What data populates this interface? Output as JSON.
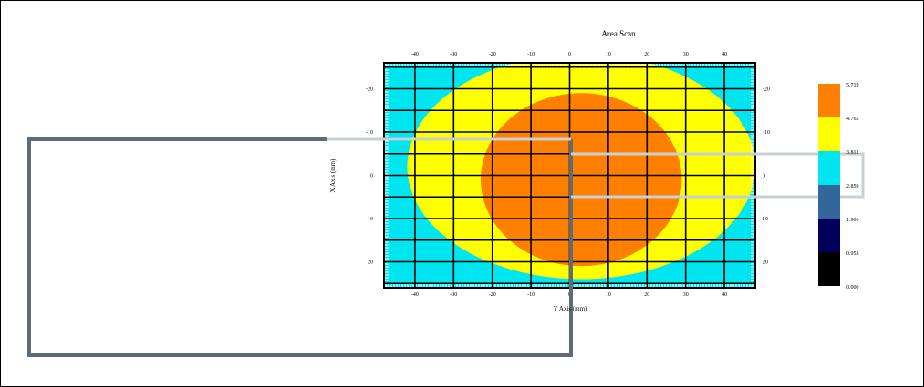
{
  "chart_data": {
    "type": "heatmap",
    "title": "Area Scan",
    "xlabel": "Y Axis (mm)",
    "ylabel": "X Axis (mm)",
    "x_ticks": [
      "-40",
      "-30",
      "-20",
      "-10",
      "0",
      "10",
      "20",
      "30",
      "40"
    ],
    "y_ticks_left": [
      "-20",
      "-10",
      "0",
      "10",
      "20"
    ],
    "x_ticks_bottom": [
      "-40",
      "-30",
      "-20",
      "-10",
      "0",
      "10",
      "20",
      "30",
      "40"
    ],
    "y_ticks_right": [
      "-20",
      "-10",
      "0",
      "10",
      "20"
    ],
    "xlim": [
      -48,
      48
    ],
    "ylim": [
      -26,
      26
    ],
    "grid": true,
    "legend": {
      "placement": "right",
      "levels": [
        {
          "value": "5.719",
          "color": "#ff8000"
        },
        {
          "value": "4.765",
          "color": "#ffff00"
        },
        {
          "value": "3.812",
          "color": "#00e6f0"
        },
        {
          "value": "2.859",
          "color": "#336699"
        },
        {
          "value": "1.906",
          "color": "#00005a"
        },
        {
          "value": "0.953",
          "color": "#000000"
        },
        {
          "value": "0.000",
          "color": ""
        }
      ]
    },
    "contours": [
      {
        "level": "2.859",
        "color": "#336699",
        "regions": "corners"
      },
      {
        "level": "3.812",
        "color": "#00e6f0",
        "region": "background"
      },
      {
        "level": "4.765",
        "color": "#ffff00",
        "center": [
          3,
          -2
        ],
        "radius": [
          45,
          26
        ]
      },
      {
        "level": "5.719",
        "color": "#ff8000",
        "center": [
          3,
          1
        ],
        "radius": [
          26,
          20
        ]
      }
    ]
  },
  "overlay": {
    "line_color": "#5f6b77",
    "light_line_color": "#c8d0d4"
  }
}
